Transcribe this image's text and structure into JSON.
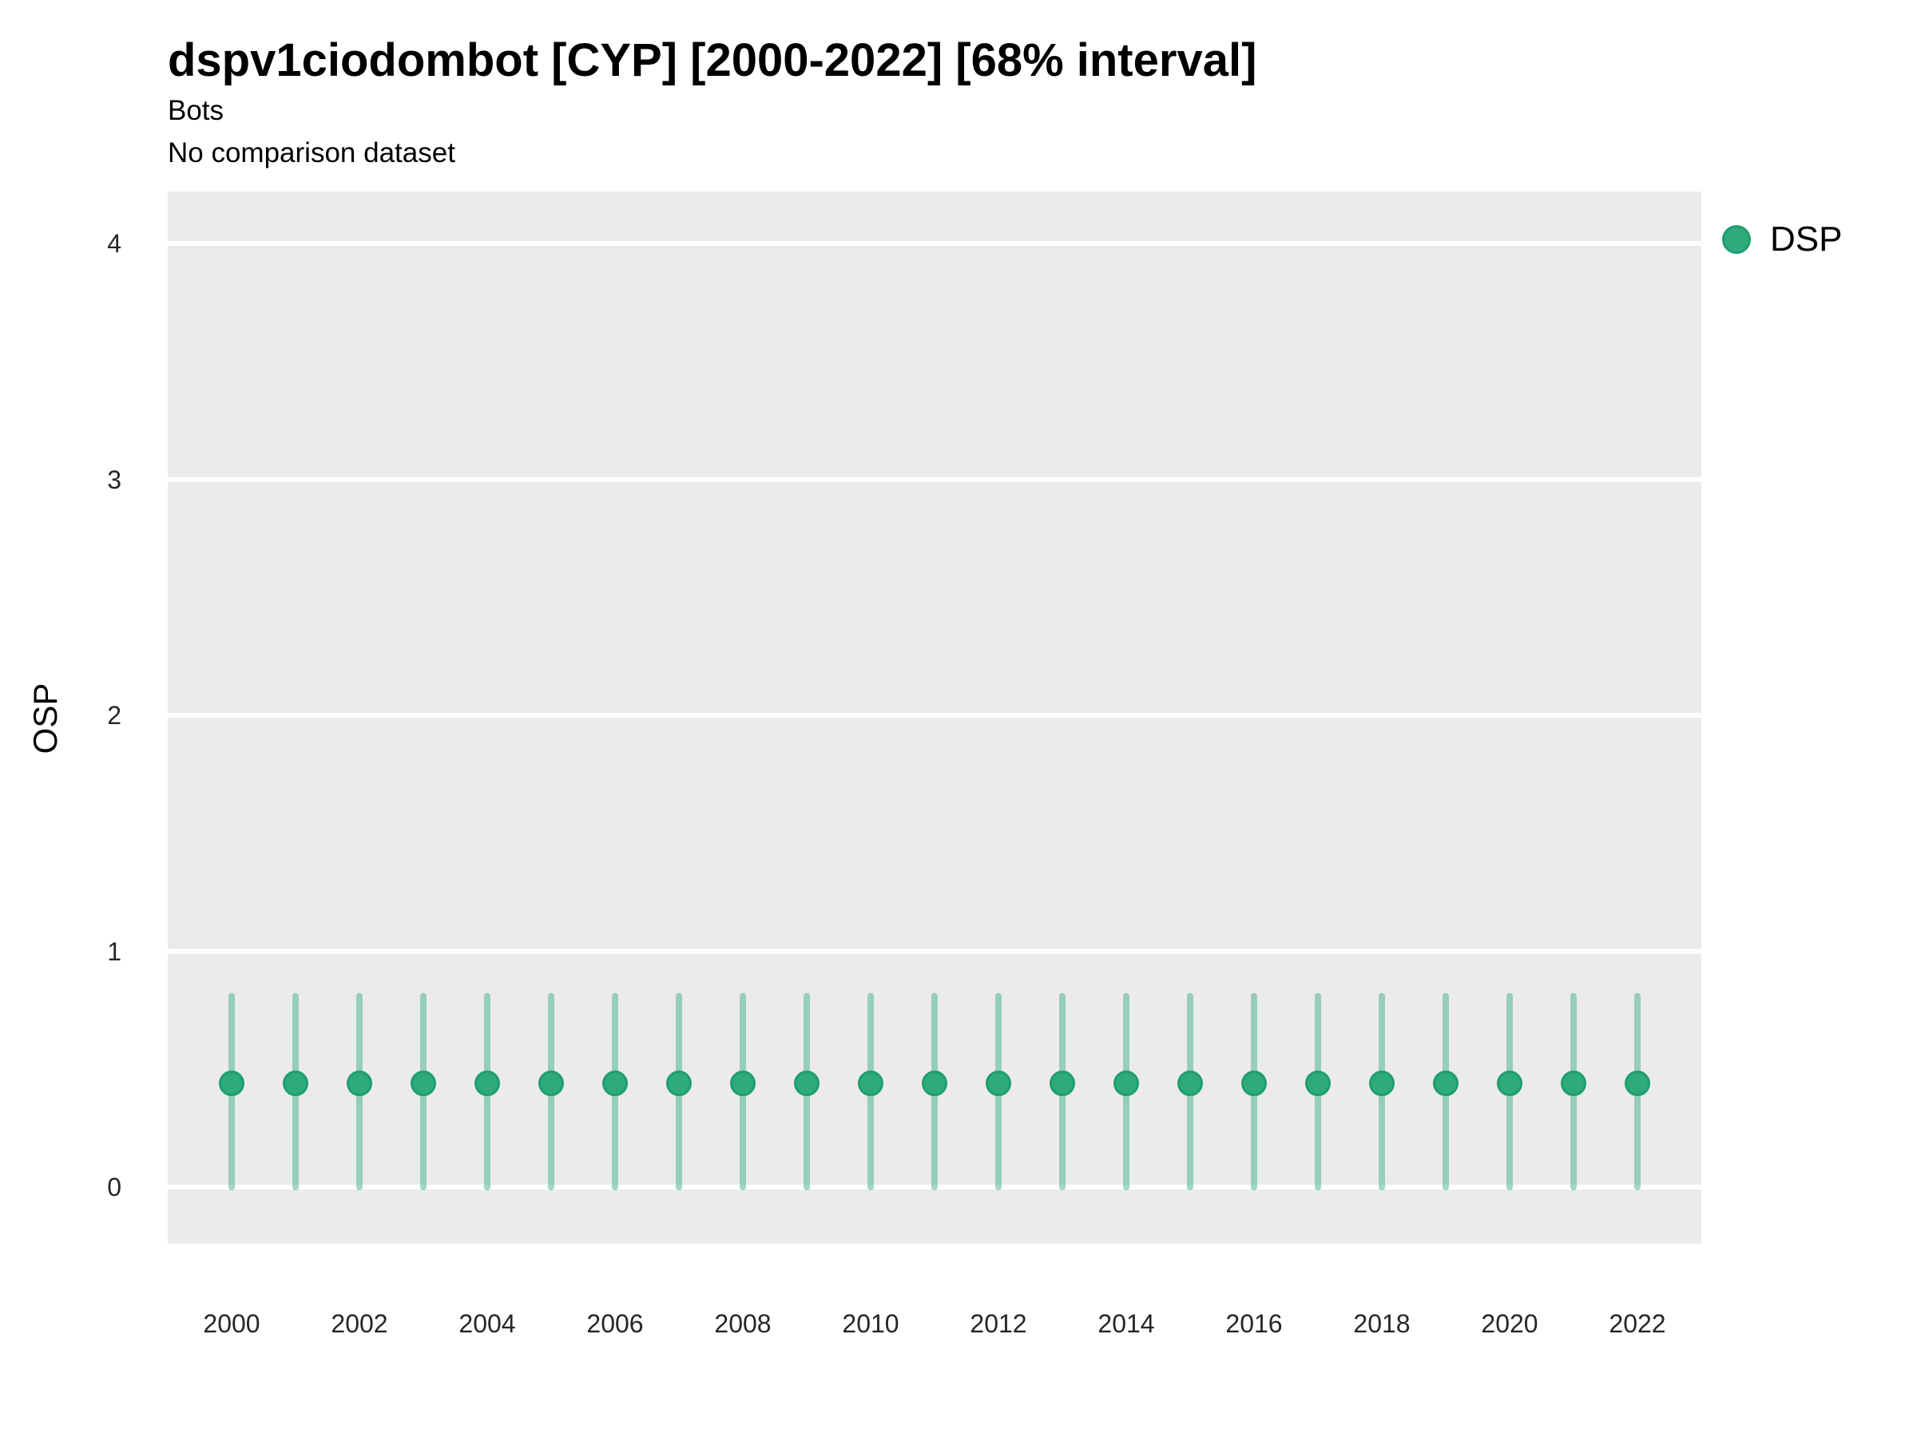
{
  "title": "dspv1ciodombot [CYP] [2000-2022] [68% interval]",
  "subtitle": "Bots",
  "subtitle2": "No comparison dataset",
  "legend": {
    "position": "right",
    "items": [
      {
        "label": "DSP",
        "marker": "circle",
        "color": "#2eaa7d"
      }
    ]
  },
  "axes": {
    "y_label": "OSP",
    "y_ticks": [
      0,
      1,
      2,
      3,
      4
    ],
    "x_tick_labels": [
      "2000",
      "2002",
      "2004",
      "2006",
      "2008",
      "2010",
      "2012",
      "2014",
      "2016",
      "2018",
      "2020",
      "2022"
    ]
  },
  "colors": {
    "point_fill": "#2eaa7d",
    "point_stroke": "#1f9e70",
    "interval_line": "rgba(46,170,125,0.45)",
    "panel_background": "#ebebeb",
    "gridline": "#ffffff",
    "tick_text": "#262626",
    "title_text": "#000000"
  },
  "chart_data": {
    "type": "scatter",
    "variant": "pointrange (point estimate with 68% interval bars)",
    "title": "dspv1ciodombot [CYP] [2000-2022] [68% interval]",
    "subtitle": "Bots",
    "caption": "No comparison dataset",
    "xlabel": "",
    "ylabel": "OSP",
    "xlim": [
      1999,
      2023
    ],
    "ylim": [
      -0.24,
      4.22
    ],
    "grid": "horizontal major gridlines only, white on grey panel",
    "legend_position": "right",
    "interval": "68%",
    "x": [
      2000,
      2001,
      2002,
      2003,
      2004,
      2005,
      2006,
      2007,
      2008,
      2009,
      2010,
      2011,
      2012,
      2013,
      2014,
      2015,
      2016,
      2017,
      2018,
      2019,
      2020,
      2021,
      2022
    ],
    "series": [
      {
        "name": "DSP",
        "values": [
          0.44,
          0.44,
          0.44,
          0.44,
          0.44,
          0.44,
          0.44,
          0.44,
          0.44,
          0.44,
          0.44,
          0.44,
          0.44,
          0.44,
          0.44,
          0.44,
          0.44,
          0.44,
          0.44,
          0.44,
          0.44,
          0.44,
          0.44
        ],
        "lower": [
          0.0,
          0.0,
          0.0,
          0.0,
          0.0,
          0.0,
          0.0,
          0.0,
          0.0,
          0.0,
          0.0,
          0.0,
          0.0,
          0.0,
          0.0,
          0.0,
          0.0,
          0.0,
          0.0,
          0.0,
          0.0,
          0.0,
          0.0
        ],
        "upper": [
          0.81,
          0.81,
          0.81,
          0.81,
          0.81,
          0.81,
          0.81,
          0.81,
          0.81,
          0.81,
          0.81,
          0.81,
          0.81,
          0.81,
          0.81,
          0.81,
          0.81,
          0.81,
          0.81,
          0.81,
          0.81,
          0.81,
          0.81
        ]
      }
    ]
  }
}
